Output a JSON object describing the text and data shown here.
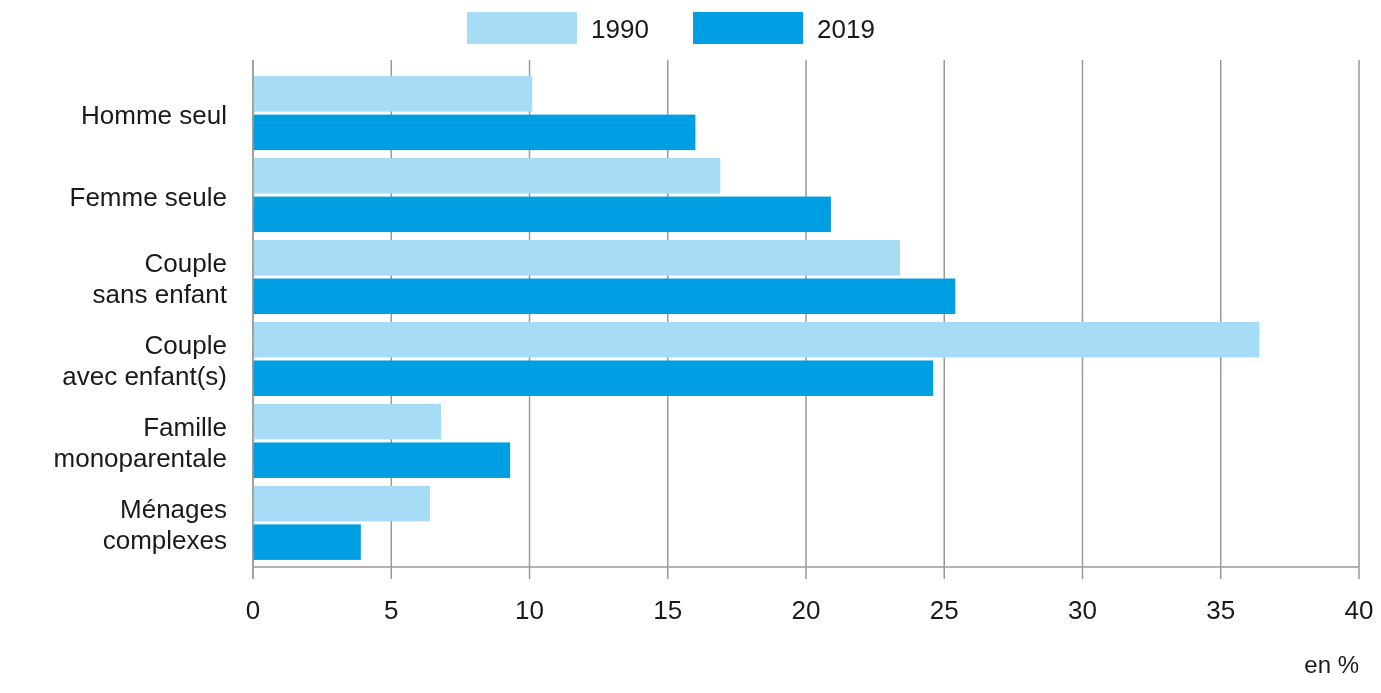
{
  "chart_data": {
    "type": "bar",
    "orientation": "horizontal",
    "categories": [
      "Homme seul",
      "Femme seule",
      "Couple\nsans enfant",
      "Couple\navec enfant(s)",
      "Famille\nmonoparentale",
      "Ménages\ncomplexes"
    ],
    "series": [
      {
        "name": "1990",
        "color": "#a6dcf5",
        "values": [
          10.1,
          16.9,
          23.4,
          36.4,
          6.8,
          6.4
        ]
      },
      {
        "name": "2019",
        "color": "#009fe3",
        "values": [
          16.0,
          20.9,
          25.4,
          24.6,
          9.3,
          3.9
        ]
      }
    ],
    "xlim": [
      0,
      40
    ],
    "xticks": [
      0,
      5,
      10,
      15,
      20,
      25,
      30,
      35,
      40
    ],
    "xlabel": "en %",
    "grid": "x",
    "legend": "top"
  }
}
